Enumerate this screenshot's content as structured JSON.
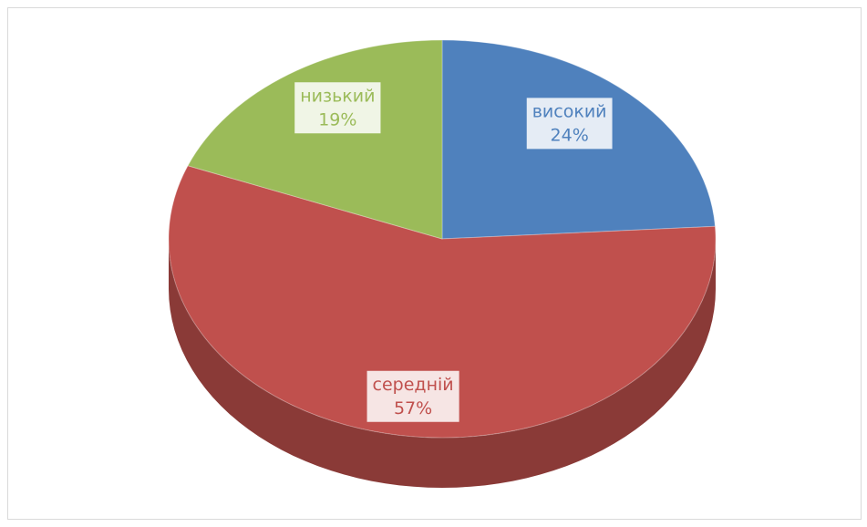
{
  "chart_data": {
    "type": "pie",
    "categories": [
      "високий",
      "середній",
      "низький"
    ],
    "values": [
      24,
      57,
      19
    ],
    "value_labels": [
      "24%",
      "57%",
      "19%"
    ],
    "colors": [
      "#4f81bd",
      "#c0504d",
      "#9bbb59"
    ]
  }
}
